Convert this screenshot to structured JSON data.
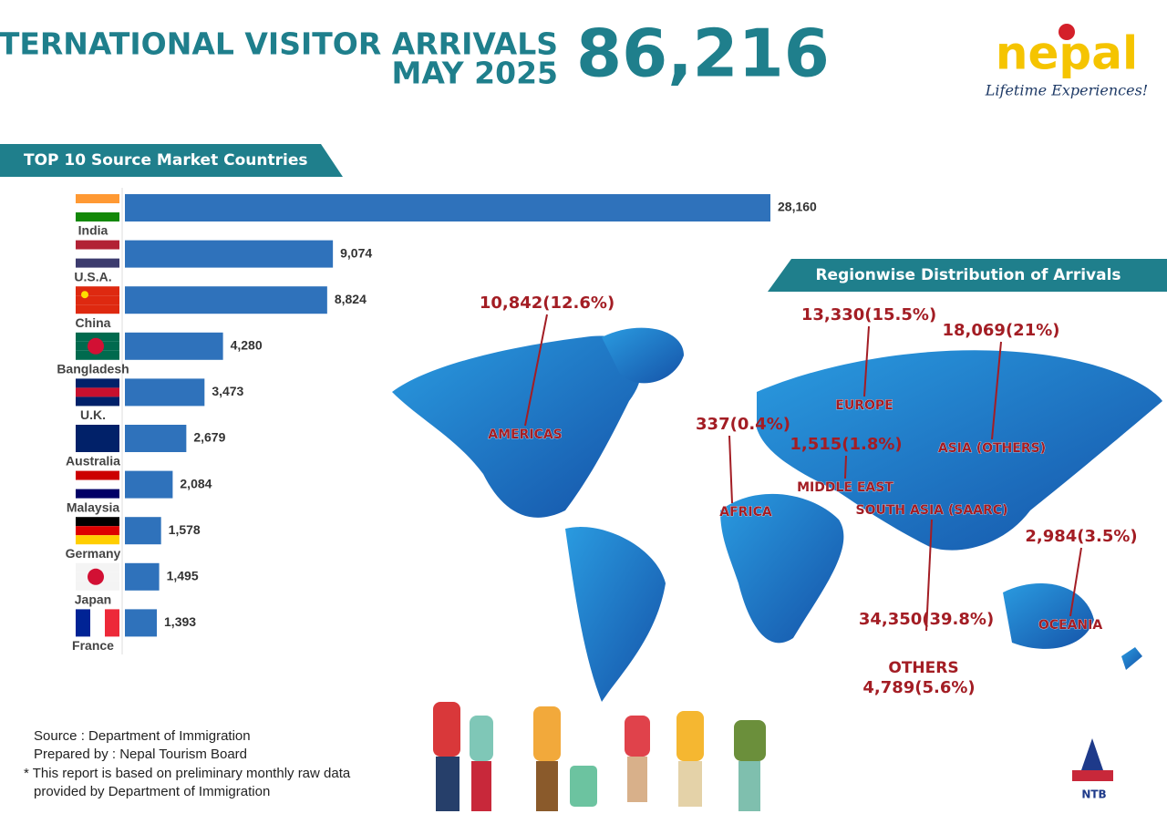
{
  "header": {
    "title_line1": "INTERNATIONAL VISITOR ARRIVALS",
    "title_line2": "MAY 2025",
    "total": "86,216"
  },
  "logo": {
    "name": "nepal",
    "tagline": "Lifetime Experiences!",
    "mark": "NTB"
  },
  "chart_data": {
    "type": "hbar",
    "title": "TOP 10 Source Market Countries",
    "color": "#2f72bb",
    "categories": [
      "India",
      "U.S.A.",
      "China",
      "Bangladesh",
      "U.K.",
      "Australia",
      "Malaysia",
      "Germany",
      "Japan",
      "France"
    ],
    "values": [
      28160,
      9074,
      8824,
      4280,
      3473,
      2679,
      2084,
      1578,
      1495,
      1393
    ],
    "value_labels": [
      "28,160",
      "9,074",
      "8,824",
      "4,280",
      "3,473",
      "2,679",
      "2,084",
      "1,578",
      "1,495",
      "1,393"
    ]
  },
  "regions": {
    "title": "Regionwise Distribution of Arrivals",
    "items": [
      {
        "name": "AMERICAS",
        "label": "10,842(12.6%)"
      },
      {
        "name": "EUROPE",
        "label": "13,330(15.5%)"
      },
      {
        "name": "ASIA (OTHERS)",
        "label": "18,069(21%)"
      },
      {
        "name": "AFRICA",
        "label": "337(0.4%)"
      },
      {
        "name": "MIDDLE EAST",
        "label": "1,515(1.8%)"
      },
      {
        "name": "SOUTH ASIA (SAARC)",
        "label": "34,350(39.8%)"
      },
      {
        "name": "OCEANIA",
        "label": "2,984(3.5%)"
      },
      {
        "name": "OTHERS",
        "label": "4,789(5.6%)"
      }
    ]
  },
  "footer": {
    "source": "Source : Department of Immigration",
    "prepared": "Prepared by : Nepal Tourism Board",
    "note1": "* This report is based on preliminary monthly raw data",
    "note2": "provided by Department of Immigration"
  }
}
